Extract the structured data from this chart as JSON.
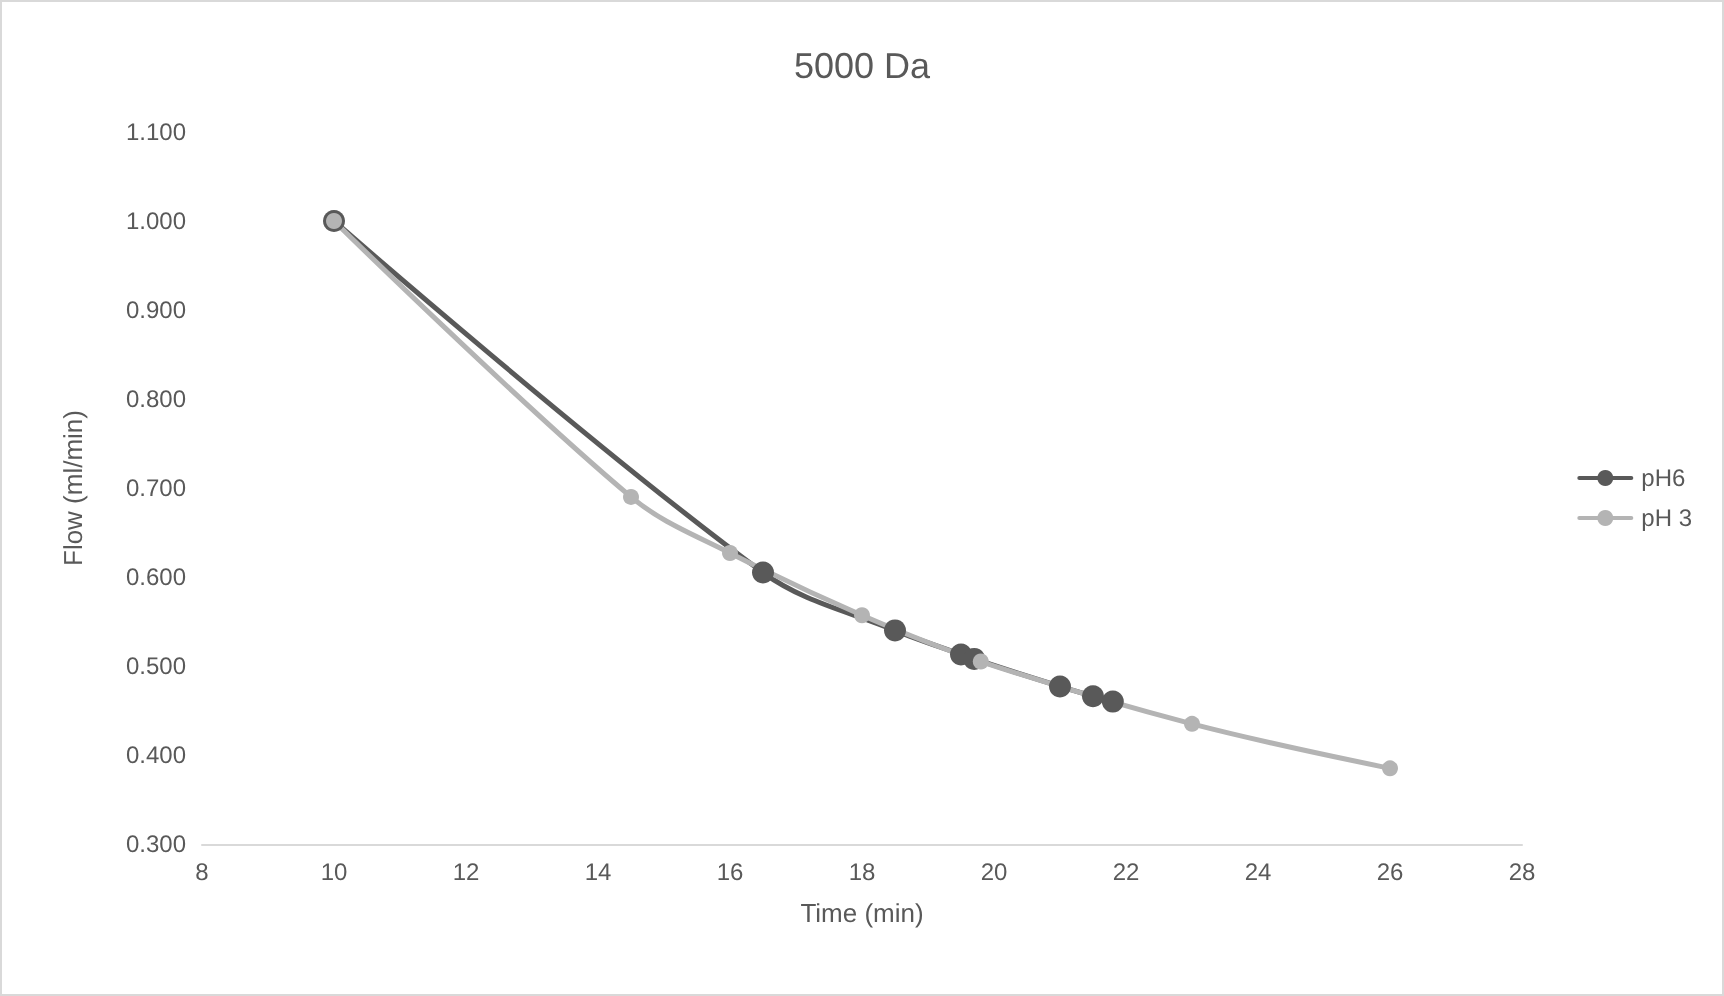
{
  "chart_data": {
    "type": "line",
    "title": "5000 Da",
    "xlabel": "Time (min)",
    "ylabel": "Flow (ml/min)",
    "xlim": [
      8,
      28
    ],
    "xticks": [
      8,
      10,
      12,
      14,
      16,
      18,
      20,
      22,
      24,
      26,
      28
    ],
    "ylim": [
      0.3,
      1.1
    ],
    "yticks": [
      {
        "value": 0.3,
        "label": "0.300"
      },
      {
        "value": 0.4,
        "label": "0.400"
      },
      {
        "value": 0.5,
        "label": "0.500"
      },
      {
        "value": 0.6,
        "label": "0.600"
      },
      {
        "value": 0.7,
        "label": "0.700"
      },
      {
        "value": 0.8,
        "label": "0.800"
      },
      {
        "value": 0.9,
        "label": "0.900"
      },
      {
        "value": 1.0,
        "label": "1.000"
      },
      {
        "value": 1.1,
        "label": "1.100"
      }
    ],
    "grid": false,
    "legend": "right",
    "marker": "circle",
    "line_style": "solid",
    "series": [
      {
        "name": "pH6",
        "color": "#595959",
        "x": [
          10,
          16.5,
          18.5,
          19.5,
          19.7,
          21,
          21.5,
          21.8
        ],
        "values": [
          1.0,
          0.605,
          0.54,
          0.513,
          0.508,
          0.477,
          0.466,
          0.46
        ]
      },
      {
        "name": "pH 3",
        "color": "#b4b4b4",
        "x": [
          10,
          14.5,
          16,
          18,
          19.8,
          23,
          26
        ],
        "values": [
          1.0,
          0.69,
          0.627,
          0.557,
          0.505,
          0.435,
          0.385
        ]
      }
    ]
  }
}
